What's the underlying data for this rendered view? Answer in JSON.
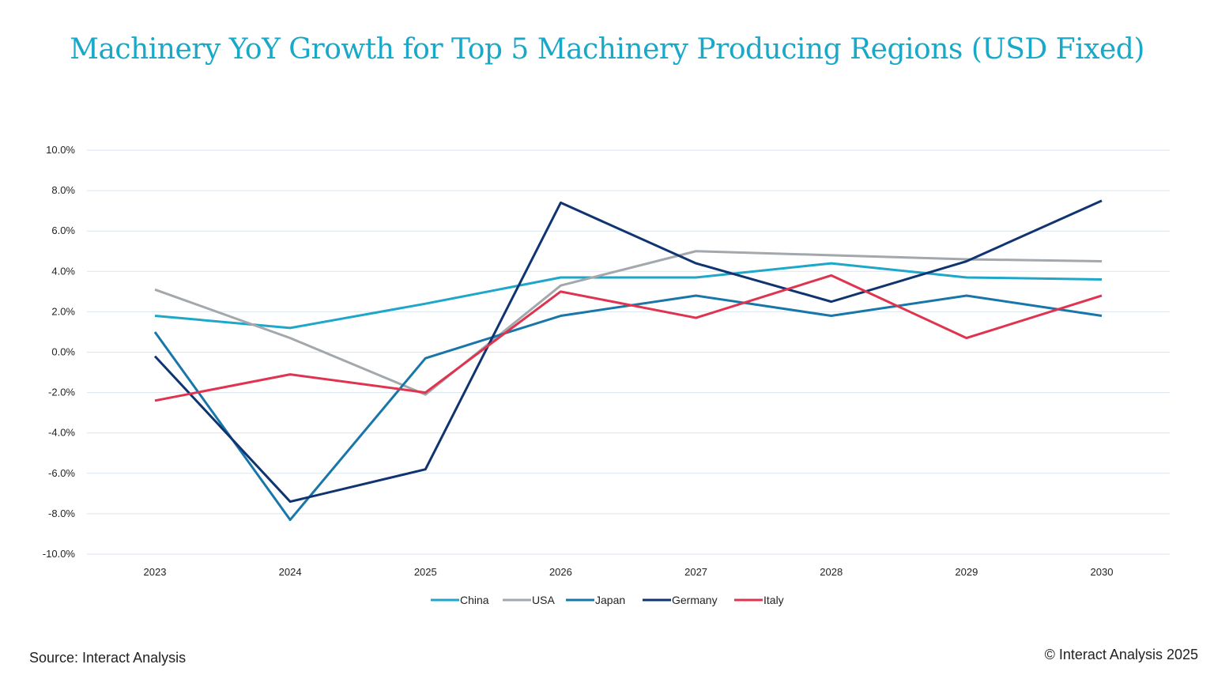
{
  "chart_data": {
    "type": "line",
    "title": "Machinery YoY Growth for Top 5 Machinery Producing Regions (USD Fixed)",
    "xlabel": "",
    "ylabel": "",
    "x": [
      "2023",
      "2024",
      "2025",
      "2026",
      "2027",
      "2028",
      "2029",
      "2030"
    ],
    "ylim": [
      -10,
      10
    ],
    "yticks": [
      10,
      8,
      6,
      4,
      2,
      0,
      -2,
      -4,
      -6,
      -8,
      -10
    ],
    "ytick_labels": [
      "10.0%",
      "8.0%",
      "6.0%",
      "4.0%",
      "2.0%",
      "0.0%",
      "-2.0%",
      "-4.0%",
      "-6.0%",
      "-8.0%",
      "-10.0%"
    ],
    "grid": true,
    "legend_position": "bottom-center",
    "series": [
      {
        "name": "China",
        "color": "#1ea7c9",
        "values": [
          1.8,
          1.2,
          2.4,
          3.7,
          3.7,
          4.4,
          3.7,
          3.6
        ]
      },
      {
        "name": "USA",
        "color": "#a3a8ad",
        "values": [
          3.1,
          0.7,
          -2.1,
          3.3,
          5.0,
          4.8,
          4.6,
          4.5
        ]
      },
      {
        "name": "Japan",
        "color": "#1877a8",
        "values": [
          1.0,
          -8.3,
          -0.3,
          1.8,
          2.8,
          1.8,
          2.8,
          1.8
        ]
      },
      {
        "name": "Germany",
        "color": "#0f3470",
        "values": [
          -0.2,
          -7.4,
          -5.8,
          7.4,
          4.4,
          2.5,
          4.5,
          7.5
        ]
      },
      {
        "name": "Italy",
        "color": "#e0334f",
        "values": [
          -2.4,
          -1.1,
          -2.0,
          3.0,
          1.7,
          3.8,
          0.7,
          2.8
        ]
      }
    ]
  },
  "footer": {
    "source": "Source: Interact Analysis",
    "copyright": "© Interact Analysis 2025"
  }
}
